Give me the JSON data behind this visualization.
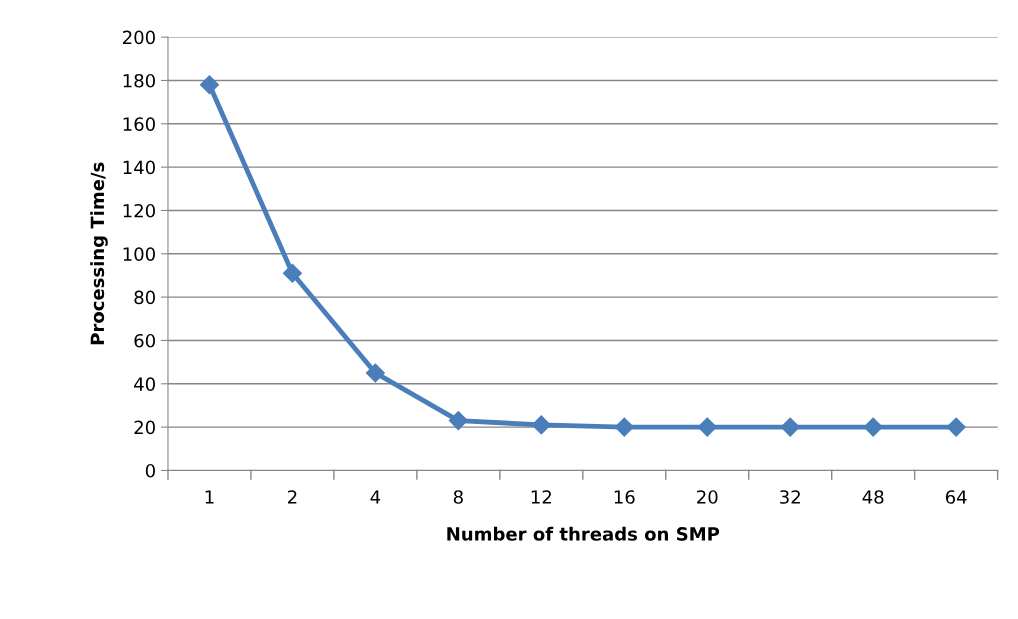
{
  "chart_data": {
    "type": "line",
    "ylabel": "Processing Time/s",
    "xlabel": "Number of threads on SMP",
    "categories": [
      "1",
      "2",
      "4",
      "8",
      "12",
      "16",
      "20",
      "32",
      "48",
      "64"
    ],
    "series": [
      {
        "color": "#4a7ebb",
        "values": [
          178,
          91,
          45,
          23,
          21,
          20,
          20,
          20,
          20,
          20
        ]
      }
    ],
    "ylim": [
      0,
      200
    ],
    "yticks": [
      0,
      20,
      40,
      60,
      80,
      100,
      120,
      140,
      160,
      180,
      200
    ],
    "grid": "y",
    "marker": "diamond",
    "line_style": "solid"
  }
}
